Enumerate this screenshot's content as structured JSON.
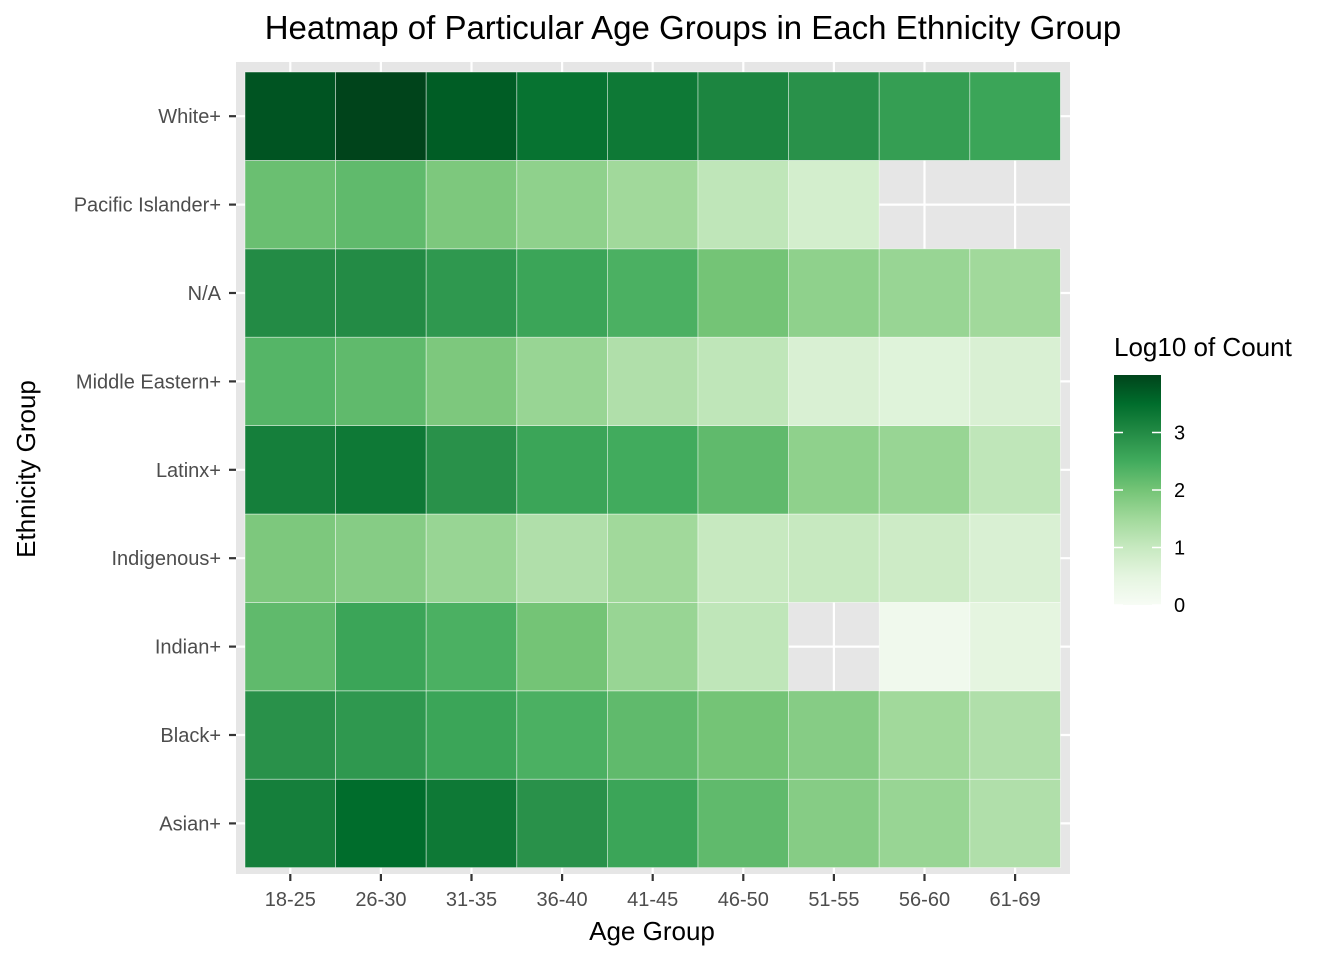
{
  "chart_data": {
    "type": "heatmap",
    "title": "Heatmap of Particular Age Groups in Each Ethnicity Group",
    "xlabel": "Age Group",
    "ylabel": "Ethnicity Group",
    "x_categories": [
      "18-25",
      "26-30",
      "31-35",
      "36-40",
      "41-45",
      "46-50",
      "51-55",
      "56-60",
      "61-69"
    ],
    "y_categories": [
      "Asian+",
      "Black+",
      "Indian+",
      "Indigenous+",
      "Latinx+",
      "Middle Eastern+",
      "N/A",
      "Pacific Islander+",
      "White+"
    ],
    "values": [
      [
        3.2,
        3.5,
        3.3,
        2.9,
        2.6,
        2.2,
        1.8,
        1.6,
        1.3
      ],
      [
        2.9,
        2.8,
        2.6,
        2.4,
        2.2,
        2.0,
        1.8,
        1.5,
        1.3
      ],
      [
        2.2,
        2.6,
        2.4,
        2.0,
        1.6,
        1.1,
        null,
        0.2,
        0.5
      ],
      [
        1.9,
        1.8,
        1.6,
        1.3,
        1.5,
        1.0,
        1.0,
        0.9,
        0.7
      ],
      [
        3.2,
        3.3,
        2.9,
        2.6,
        2.5,
        2.2,
        1.7,
        1.6,
        1.1
      ],
      [
        2.3,
        2.2,
        1.9,
        1.6,
        1.3,
        1.1,
        0.7,
        0.6,
        0.7
      ],
      [
        3.0,
        3.0,
        2.8,
        2.6,
        2.4,
        2.0,
        1.7,
        1.6,
        1.5
      ],
      [
        2.1,
        2.2,
        1.9,
        1.7,
        1.5,
        1.1,
        0.8,
        null,
        null
      ],
      [
        3.8,
        4.0,
        3.7,
        3.4,
        3.3,
        3.1,
        2.9,
        2.7,
        2.6
      ]
    ],
    "missing_color": "#e6e6e6",
    "panel_background": "#e6e6e6",
    "grid": true,
    "color_scale": {
      "title": "Log10 of Count",
      "low_color": "#f7fcf5",
      "high_color": "#00441b",
      "palette": [
        "#f7fcf5",
        "#e5f5e0",
        "#c7e9c0",
        "#a1d99b",
        "#74c476",
        "#41ab5d",
        "#238b45",
        "#006d2c",
        "#00441b"
      ],
      "domain": [
        0,
        4
      ],
      "breaks": [
        0,
        1,
        2,
        3
      ],
      "labels": [
        "0",
        "1",
        "2",
        "3"
      ]
    },
    "legend_position": "right"
  }
}
